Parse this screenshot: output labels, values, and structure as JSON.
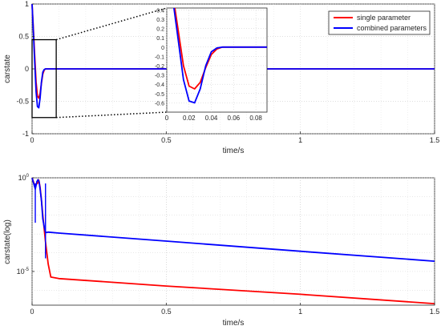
{
  "chart_data": [
    {
      "type": "line",
      "xlabel": "time/s",
      "ylabel": "carstate",
      "xlim": [
        0,
        1.5
      ],
      "ylim": [
        -1,
        1
      ],
      "xticks": [
        "0",
        "0.5",
        "1",
        "1.5"
      ],
      "yticks": [
        "-1",
        "-0.5",
        "0",
        "0.5",
        "1"
      ],
      "grid": true,
      "legend": "top-right",
      "series": [
        {
          "name": "single parameter",
          "color": "#ff0000",
          "x": [
            0,
            0.005,
            0.01,
            0.015,
            0.02,
            0.025,
            0.03,
            0.035,
            0.04,
            0.045,
            0.05,
            0.06,
            0.07,
            0.08,
            0.1,
            0.5,
            1.0,
            1.5
          ],
          "y": [
            1,
            0.6,
            0.2,
            -0.2,
            -0.42,
            -0.45,
            -0.38,
            -0.22,
            -0.08,
            -0.02,
            0.0,
            0.0,
            0.0,
            0.0,
            0.0,
            0.0,
            0.0,
            0.0
          ]
        },
        {
          "name": "combined parameters",
          "color": "#0000ff",
          "x": [
            0,
            0.005,
            0.01,
            0.015,
            0.02,
            0.025,
            0.03,
            0.035,
            0.04,
            0.045,
            0.05,
            0.06,
            0.07,
            0.08,
            0.1,
            0.5,
            1.0,
            1.5
          ],
          "y": [
            1,
            0.55,
            0.1,
            -0.35,
            -0.58,
            -0.6,
            -0.45,
            -0.2,
            -0.05,
            -0.01,
            0.0,
            0.0,
            0.0,
            0.0,
            0.0,
            0.0,
            0.0,
            0.0
          ]
        }
      ],
      "inset": {
        "xlim": [
          0,
          0.09
        ],
        "ylim": [
          -0.7,
          0.42
        ],
        "xticks": [
          "0",
          "0.02",
          "0.04",
          "0.06",
          "0.08"
        ],
        "yticks": [
          "-0.6",
          "-0.5",
          "-0.4",
          "-0.3",
          "-0.2",
          "-0.1",
          "0",
          "0.1",
          "0.2",
          "0.3",
          "0.4"
        ],
        "zoom_box": {
          "xlim": [
            0,
            0.09
          ],
          "ylim": [
            -0.75,
            0.45
          ]
        }
      }
    },
    {
      "type": "line",
      "xlabel": "time/s",
      "ylabel": "carstate(log)",
      "xlim": [
        0,
        1.5
      ],
      "ylim_log10": [
        -6.8,
        0
      ],
      "xticks": [
        "0",
        "0.5",
        "1",
        "1.5"
      ],
      "yticks": [
        {
          "base": "10",
          "exp": "0",
          "value_log10": 0
        },
        {
          "base": "10",
          "exp": "-5",
          "value_log10": -5
        }
      ],
      "grid": true,
      "series": [
        {
          "color": "#ff0000",
          "x": [
            0,
            0.01,
            0.02,
            0.025,
            0.03,
            0.035,
            0.04,
            0.05,
            0.06,
            0.07,
            0.1,
            0.5,
            1.0,
            1.5
          ],
          "log10y": [
            0,
            -0.4,
            -0.3,
            -0.12,
            -0.5,
            -1.2,
            -2.0,
            -3.4,
            -4.6,
            -5.3,
            -5.38,
            -5.78,
            -6.22,
            -6.72
          ]
        },
        {
          "color": "#0000ff",
          "x": [
            0,
            0.006,
            0.012,
            0.018,
            0.022,
            0.026,
            0.03,
            0.035,
            0.04,
            0.045,
            0.05,
            0.055,
            0.06,
            0.1,
            0.5,
            1.0,
            1.5
          ],
          "log10y": [
            0,
            -0.3,
            -0.6,
            -0.2,
            -0.1,
            -0.2,
            -0.6,
            -1.2,
            -2.2,
            -2.6,
            -2.9,
            -2.92,
            -2.9,
            -2.95,
            -3.38,
            -3.92,
            -4.45
          ]
        }
      ],
      "dips": [
        {
          "x": 0.012,
          "log10y": -2.4,
          "color": "#0000ff"
        },
        {
          "x": 0.05,
          "log10y": -4.3,
          "color": "#0000ff"
        }
      ]
    }
  ]
}
